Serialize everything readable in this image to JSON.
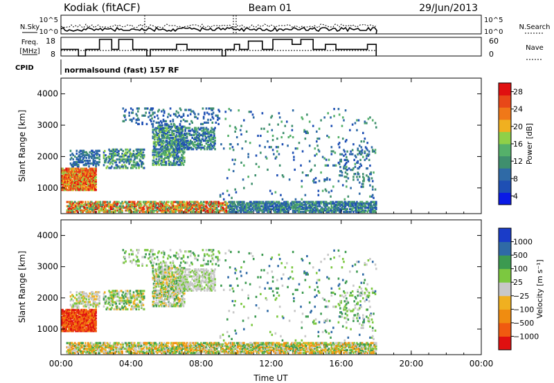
{
  "header": {
    "station": "Kodiak (fitACF)",
    "beam": "Beam 01",
    "date": "29/Jun/2013"
  },
  "panels": {
    "nsky_label": "N.Sky",
    "nsearch_label": "N.Search",
    "freq_label": "Freq.",
    "freq_unit": "[MHz]",
    "nave_label": "Nave",
    "cpid_label": "CPID",
    "cpid_value": "normalsound (fast) 157 RF",
    "noise_ticks": [
      "10^5",
      "10^0"
    ],
    "freq_ticks": [
      "18",
      "8"
    ],
    "nave_ticks": [
      "60",
      "0"
    ]
  },
  "colors": {
    "power": [
      "#0a1ae6",
      "#1e4fb4",
      "#2f6aa6",
      "#3f8f6e",
      "#55b06a",
      "#8fd048",
      "#f0b020",
      "#f07818",
      "#e84818",
      "#e01010"
    ],
    "velocity": [
      "#e01010",
      "#f05a10",
      "#f08c10",
      "#f0b020",
      "#c8c8c8",
      "#7cc840",
      "#3c9a50",
      "#2f6aa6",
      "#1a3cc8"
    ]
  },
  "chart_data": [
    {
      "type": "heatmap",
      "title": "",
      "xlabel": "Time UT",
      "ylabel": "Slant Range [km]",
      "colorbar_label": "Power [dB]",
      "x_ticks": [
        "00:00",
        "04:00",
        "08:00",
        "12:00",
        "16:00",
        "20:00",
        "00:00"
      ],
      "xlim": [
        0,
        24
      ],
      "ylim": [
        180,
        4500
      ],
      "y_ticks": [
        1000,
        2000,
        3000,
        4000
      ],
      "colorbar_ticks": [
        4,
        8,
        12,
        16,
        20,
        24,
        28
      ],
      "colorbar_range": [
        2,
        30
      ],
      "data_end_hour": 18
    },
    {
      "type": "heatmap",
      "title": "",
      "xlabel": "Time UT",
      "ylabel": "Slant Range [km]",
      "colorbar_label": "Velocity [m s⁻¹]",
      "x_ticks": [
        "00:00",
        "04:00",
        "08:00",
        "12:00",
        "16:00",
        "20:00",
        "00:00"
      ],
      "xlim": [
        0,
        24
      ],
      "ylim": [
        180,
        4500
      ],
      "y_ticks": [
        1000,
        2000,
        3000,
        4000
      ],
      "colorbar_ticks": [
        "1000",
        "500",
        "100",
        "25",
        "−25",
        "−100",
        "−500",
        "−1000"
      ],
      "data_end_hour": 18
    }
  ]
}
